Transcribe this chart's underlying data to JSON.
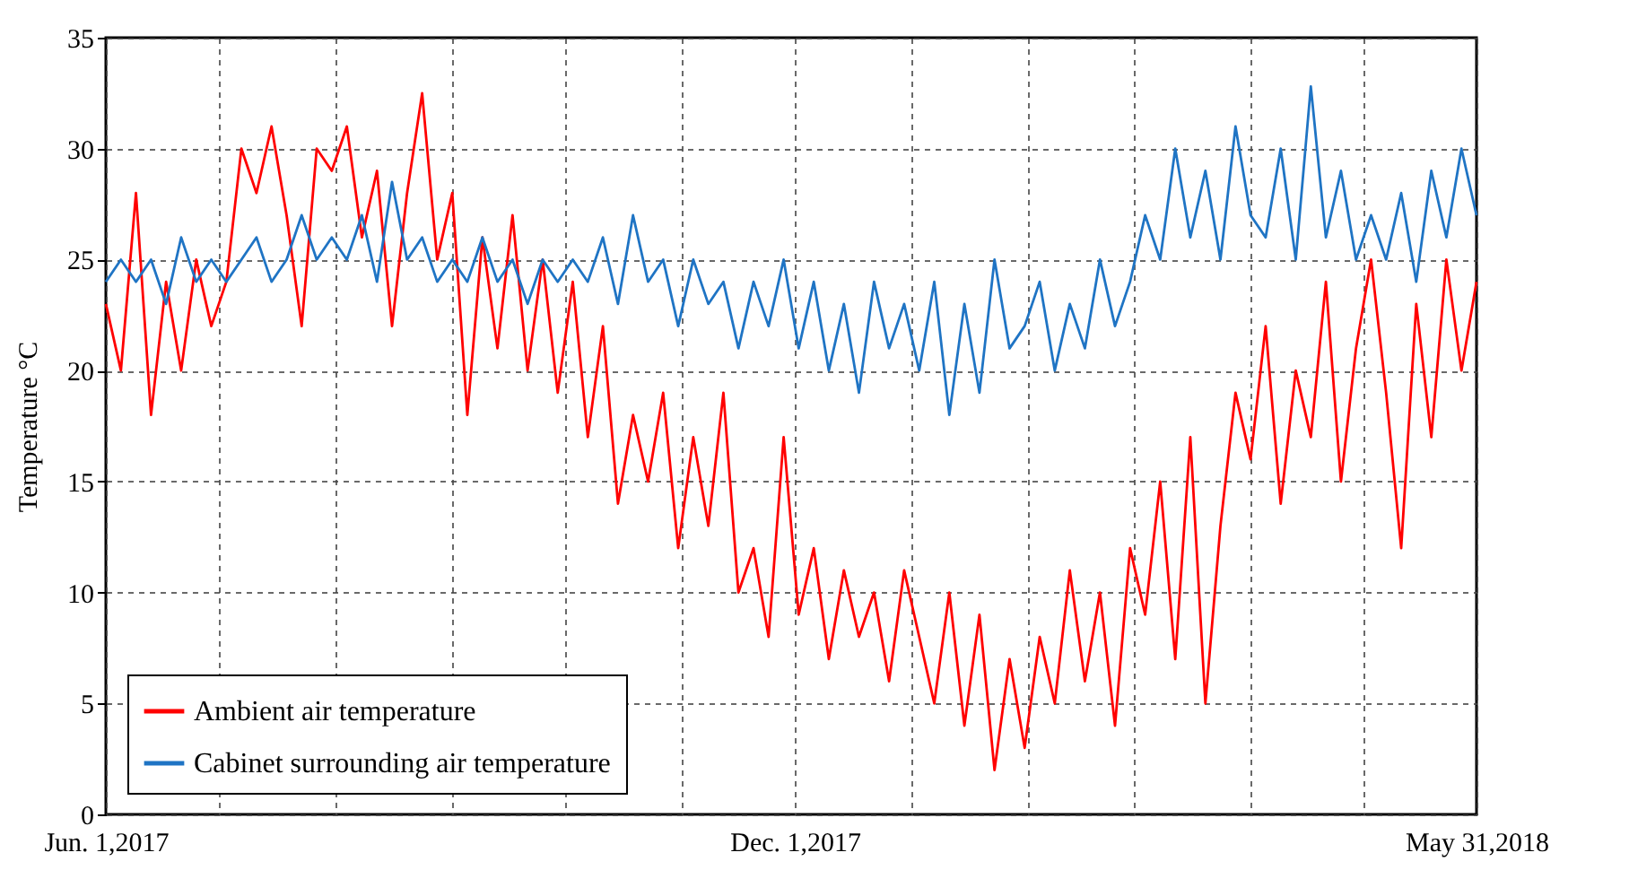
{
  "chart_data": {
    "type": "line",
    "ylabel": "Temperature °C",
    "x": [
      "2017-06-01",
      "2017-06-05",
      "2017-06-09",
      "2017-06-13",
      "2017-06-17",
      "2017-06-21",
      "2017-06-25",
      "2017-06-29",
      "2017-07-03",
      "2017-07-07",
      "2017-07-11",
      "2017-07-15",
      "2017-07-19",
      "2017-07-23",
      "2017-07-27",
      "2017-07-31",
      "2017-08-04",
      "2017-08-08",
      "2017-08-12",
      "2017-08-16",
      "2017-08-20",
      "2017-08-24",
      "2017-08-28",
      "2017-09-01",
      "2017-09-05",
      "2017-09-09",
      "2017-09-13",
      "2017-09-17",
      "2017-09-21",
      "2017-09-25",
      "2017-09-29",
      "2017-10-03",
      "2017-10-07",
      "2017-10-11",
      "2017-10-15",
      "2017-10-19",
      "2017-10-23",
      "2017-10-27",
      "2017-10-31",
      "2017-11-04",
      "2017-11-08",
      "2017-11-12",
      "2017-11-16",
      "2017-11-20",
      "2017-11-24",
      "2017-11-28",
      "2017-12-02",
      "2017-12-06",
      "2017-12-10",
      "2017-12-14",
      "2017-12-18",
      "2017-12-22",
      "2017-12-26",
      "2017-12-30",
      "2018-01-03",
      "2018-01-07",
      "2018-01-11",
      "2018-01-15",
      "2018-01-19",
      "2018-01-23",
      "2018-01-27",
      "2018-01-31",
      "2018-02-04",
      "2018-02-08",
      "2018-02-12",
      "2018-02-16",
      "2018-02-20",
      "2018-02-24",
      "2018-02-28",
      "2018-03-04",
      "2018-03-08",
      "2018-03-12",
      "2018-03-16",
      "2018-03-20",
      "2018-03-24",
      "2018-03-28",
      "2018-04-01",
      "2018-04-05",
      "2018-04-09",
      "2018-04-13",
      "2018-04-17",
      "2018-04-21",
      "2018-04-25",
      "2018-04-29",
      "2018-05-03",
      "2018-05-07",
      "2018-05-11",
      "2018-05-15",
      "2018-05-19",
      "2018-05-23",
      "2018-05-27",
      "2018-05-31"
    ],
    "series": [
      {
        "name": "Ambient air temperature",
        "color": "#ff0000",
        "values": [
          23,
          20,
          28,
          18,
          24,
          20,
          25,
          22,
          24,
          30,
          28,
          31,
          27,
          22,
          30,
          29,
          31,
          26,
          29,
          22,
          28,
          32.5,
          25,
          28,
          18,
          26,
          21,
          27,
          20,
          25,
          19,
          24,
          17,
          22,
          14,
          18,
          15,
          19,
          12,
          17,
          13,
          19,
          10,
          12,
          8,
          17,
          9,
          12,
          7,
          11,
          8,
          10,
          6,
          11,
          8,
          5,
          10,
          4,
          9,
          2,
          7,
          3,
          8,
          5,
          11,
          6,
          10,
          4,
          12,
          9,
          15,
          7,
          17,
          5,
          13,
          19,
          16,
          22,
          14,
          20,
          17,
          24,
          15,
          21,
          25,
          19,
          12,
          23,
          17,
          25,
          20,
          24
        ]
      },
      {
        "name": "Cabinet surrounding air temperature",
        "color": "#1f74c4",
        "values": [
          24,
          25,
          24,
          25,
          23,
          26,
          24,
          25,
          24,
          25,
          26,
          24,
          25,
          27,
          25,
          26,
          25,
          27,
          24,
          28.5,
          25,
          26,
          24,
          25,
          24,
          26,
          24,
          25,
          23,
          25,
          24,
          25,
          24,
          26,
          23,
          27,
          24,
          25,
          22,
          25,
          23,
          24,
          21,
          24,
          22,
          25,
          21,
          24,
          20,
          23,
          19,
          24,
          21,
          23,
          20,
          24,
          18,
          23,
          19,
          25,
          21,
          22,
          24,
          20,
          23,
          21,
          25,
          22,
          24,
          27,
          25,
          30,
          26,
          29,
          25,
          31,
          27,
          26,
          30,
          25,
          32.8,
          26,
          29,
          25,
          27,
          25,
          28,
          24,
          29,
          26,
          30,
          27
        ]
      }
    ],
    "xlim": [
      "2017-06-01",
      "2018-05-31"
    ],
    "xticks": [
      {
        "value": "2017-06-01",
        "label": "Jun. 1,2017"
      },
      {
        "value": "2017-07-01",
        "label": null
      },
      {
        "value": "2017-08-01",
        "label": null
      },
      {
        "value": "2017-09-01",
        "label": null
      },
      {
        "value": "2017-10-01",
        "label": null
      },
      {
        "value": "2017-11-01",
        "label": null
      },
      {
        "value": "2017-12-01",
        "label": "Dec. 1,2017"
      },
      {
        "value": "2018-01-01",
        "label": null
      },
      {
        "value": "2018-02-01",
        "label": null
      },
      {
        "value": "2018-03-01",
        "label": null
      },
      {
        "value": "2018-04-01",
        "label": null
      },
      {
        "value": "2018-05-01",
        "label": null
      },
      {
        "value": "2018-05-31",
        "label": "May 31,2018"
      }
    ],
    "ylim": [
      0,
      35
    ],
    "yticks": [
      0,
      5,
      10,
      15,
      20,
      25,
      30,
      35
    ],
    "grid": true,
    "legend": "bottom left",
    "line_style": "solid"
  }
}
